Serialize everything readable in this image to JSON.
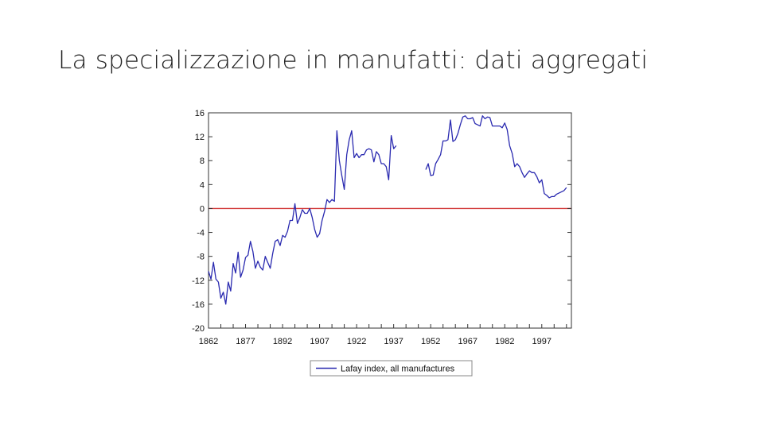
{
  "slide": {
    "title": "La specializzazione in manufatti: dati aggregati"
  },
  "colors": {
    "series": "#2a2ab0",
    "zero_line": "#d23a3a",
    "axis": "#333333"
  },
  "chart_data": {
    "type": "line",
    "title": "",
    "xlabel": "",
    "ylabel": "",
    "xlim": [
      1862,
      2009
    ],
    "ylim": [
      -20,
      16
    ],
    "y_ticks": [
      16,
      12,
      8,
      4,
      0,
      -4,
      -8,
      -12,
      -16,
      -20
    ],
    "x_ticks": [
      1862,
      1877,
      1892,
      1907,
      1922,
      1937,
      1952,
      1967,
      1982,
      1997
    ],
    "grid": false,
    "legend": "bottom",
    "reference_lines": [
      {
        "axis": "y",
        "value": 0
      }
    ],
    "series": [
      {
        "name": "Lafay index, all manufactures",
        "segments": [
          [
            [
              1862,
              -10.5
            ],
            [
              1863,
              -11.8
            ],
            [
              1864,
              -9.0
            ],
            [
              1865,
              -11.8
            ],
            [
              1866,
              -12.3
            ],
            [
              1867,
              -15.0
            ],
            [
              1868,
              -14.0
            ],
            [
              1869,
              -16.0
            ],
            [
              1870,
              -12.3
            ],
            [
              1871,
              -13.8
            ],
            [
              1872,
              -9.2
            ],
            [
              1873,
              -10.8
            ],
            [
              1874,
              -7.3
            ],
            [
              1875,
              -11.5
            ],
            [
              1876,
              -10.3
            ],
            [
              1877,
              -8.2
            ],
            [
              1878,
              -7.8
            ],
            [
              1879,
              -5.5
            ],
            [
              1880,
              -7.2
            ],
            [
              1881,
              -10.0
            ],
            [
              1882,
              -8.8
            ],
            [
              1883,
              -9.8
            ],
            [
              1884,
              -10.3
            ],
            [
              1885,
              -8.0
            ],
            [
              1886,
              -9.0
            ],
            [
              1887,
              -10.0
            ],
            [
              1888,
              -7.5
            ],
            [
              1889,
              -5.5
            ],
            [
              1890,
              -5.2
            ],
            [
              1891,
              -6.2
            ],
            [
              1892,
              -4.5
            ],
            [
              1893,
              -4.8
            ],
            [
              1894,
              -3.8
            ],
            [
              1895,
              -2.0
            ],
            [
              1896,
              -2.0
            ],
            [
              1897,
              0.8
            ],
            [
              1898,
              -2.5
            ],
            [
              1899,
              -1.5
            ],
            [
              1900,
              -0.2
            ],
            [
              1901,
              -0.8
            ],
            [
              1902,
              -0.8
            ],
            [
              1903,
              0.0
            ],
            [
              1904,
              -1.5
            ],
            [
              1905,
              -3.5
            ],
            [
              1906,
              -4.8
            ],
            [
              1907,
              -4.2
            ],
            [
              1908,
              -2.0
            ],
            [
              1909,
              -0.5
            ],
            [
              1910,
              1.5
            ],
            [
              1911,
              1.0
            ],
            [
              1912,
              1.5
            ],
            [
              1913,
              1.2
            ],
            [
              1914,
              13.0
            ],
            [
              1915,
              8.0
            ],
            [
              1916,
              5.5
            ],
            [
              1917,
              3.2
            ],
            [
              1918,
              9.0
            ],
            [
              1919,
              11.5
            ],
            [
              1920,
              13.0
            ],
            [
              1921,
              8.5
            ],
            [
              1922,
              9.2
            ],
            [
              1923,
              8.5
            ],
            [
              1924,
              9.0
            ],
            [
              1925,
              9.0
            ],
            [
              1926,
              9.8
            ],
            [
              1927,
              10.0
            ],
            [
              1928,
              9.8
            ],
            [
              1929,
              7.8
            ],
            [
              1930,
              9.5
            ],
            [
              1931,
              9.0
            ],
            [
              1932,
              7.5
            ],
            [
              1933,
              7.5
            ],
            [
              1934,
              7.0
            ],
            [
              1935,
              4.8
            ],
            [
              1936,
              12.2
            ],
            [
              1937,
              10.0
            ],
            [
              1938,
              10.5
            ]
          ],
          [
            [
              1950,
              6.5
            ],
            [
              1951,
              7.5
            ],
            [
              1952,
              5.5
            ],
            [
              1953,
              5.6
            ],
            [
              1954,
              7.5
            ],
            [
              1955,
              8.2
            ],
            [
              1956,
              9.0
            ],
            [
              1957,
              11.3
            ],
            [
              1958,
              11.3
            ],
            [
              1959,
              11.5
            ],
            [
              1960,
              14.8
            ],
            [
              1961,
              11.2
            ],
            [
              1962,
              11.5
            ],
            [
              1963,
              12.5
            ],
            [
              1964,
              14.0
            ],
            [
              1965,
              15.3
            ],
            [
              1966,
              15.5
            ],
            [
              1967,
              15.0
            ],
            [
              1968,
              15.0
            ],
            [
              1969,
              15.2
            ],
            [
              1970,
              14.2
            ],
            [
              1971,
              14.0
            ],
            [
              1972,
              13.8
            ],
            [
              1973,
              15.5
            ],
            [
              1974,
              15.0
            ],
            [
              1975,
              15.3
            ],
            [
              1976,
              15.2
            ],
            [
              1977,
              13.8
            ],
            [
              1978,
              13.8
            ],
            [
              1979,
              13.8
            ],
            [
              1980,
              13.8
            ],
            [
              1981,
              13.5
            ],
            [
              1982,
              14.3
            ],
            [
              1983,
              13.2
            ],
            [
              1984,
              10.5
            ],
            [
              1985,
              9.2
            ],
            [
              1986,
              7.0
            ],
            [
              1987,
              7.5
            ],
            [
              1988,
              7.0
            ],
            [
              1989,
              6.0
            ],
            [
              1990,
              5.2
            ],
            [
              1991,
              5.8
            ],
            [
              1992,
              6.3
            ],
            [
              1993,
              6.0
            ],
            [
              1994,
              6.0
            ],
            [
              1995,
              5.3
            ],
            [
              1996,
              4.3
            ],
            [
              1997,
              4.8
            ],
            [
              1998,
              2.5
            ],
            [
              1999,
              2.2
            ],
            [
              2000,
              1.8
            ],
            [
              2001,
              2.0
            ],
            [
              2002,
              2.0
            ],
            [
              2003,
              2.4
            ],
            [
              2004,
              2.6
            ],
            [
              2005,
              2.8
            ],
            [
              2006,
              3.0
            ],
            [
              2007,
              3.5
            ]
          ]
        ]
      }
    ]
  }
}
